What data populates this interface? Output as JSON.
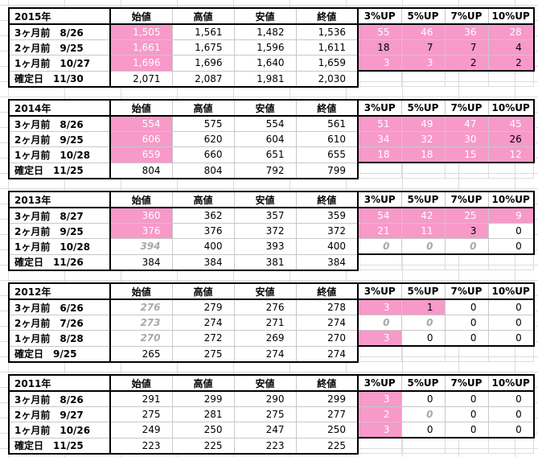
{
  "headers": [
    "始値",
    "高値",
    "安値",
    "終値",
    "3%UP",
    "5%UP",
    "7%UP",
    "10%UP"
  ],
  "blocks": [
    {
      "year": "2015年",
      "rows": [
        {
          "label": "3ヶ月前　8/26",
          "open": "1,505",
          "high": "1,561",
          "low": "1,482",
          "close": "1,536",
          "up3": "55",
          "up5": "46",
          "up7": "36",
          "up10": "28"
        },
        {
          "label": "2ヶ月前　9/25",
          "open": "1,661",
          "high": "1,675",
          "low": "1,596",
          "close": "1,611",
          "up3": "18",
          "up5": "7",
          "up7": "7",
          "up10": "4"
        },
        {
          "label": "1ヶ月前　10/27",
          "open": "1,696",
          "high": "1,696",
          "low": "1,640",
          "close": "1,659",
          "up3": "3",
          "up5": "3",
          "up7": "2",
          "up10": "2"
        },
        {
          "label": "確定日　11/30",
          "open": "2,071",
          "high": "2,087",
          "low": "1,981",
          "close": "2,030"
        }
      ]
    },
    {
      "year": "2014年",
      "rows": [
        {
          "label": "3ヶ月前　8/26",
          "open": "554",
          "high": "575",
          "low": "554",
          "close": "561",
          "up3": "51",
          "up5": "49",
          "up7": "47",
          "up10": "45"
        },
        {
          "label": "2ヶ月前　9/25",
          "open": "606",
          "high": "620",
          "low": "604",
          "close": "610",
          "up3": "34",
          "up5": "32",
          "up7": "30",
          "up10": "26"
        },
        {
          "label": "1ヶ月前　10/28",
          "open": "659",
          "high": "660",
          "low": "651",
          "close": "655",
          "up3": "18",
          "up5": "18",
          "up7": "15",
          "up10": "12"
        },
        {
          "label": "確定日　11/25",
          "open": "804",
          "high": "804",
          "low": "792",
          "close": "799"
        }
      ]
    },
    {
      "year": "2013年",
      "rows": [
        {
          "label": "3ヶ月前　8/27",
          "open": "360",
          "high": "362",
          "low": "357",
          "close": "359",
          "up3": "54",
          "up5": "42",
          "up7": "25",
          "up10": "9"
        },
        {
          "label": "2ヶ月前　9/25",
          "open": "376",
          "high": "376",
          "low": "372",
          "close": "372",
          "up3": "21",
          "up5": "11",
          "up7": "3",
          "up10": "0"
        },
        {
          "label": "1ヶ月前　10/28",
          "open": "394",
          "high": "400",
          "low": "393",
          "close": "400",
          "up3": "0",
          "up5": "0",
          "up7": "0",
          "up10": "0"
        },
        {
          "label": "確定日　11/26",
          "open": "384",
          "high": "384",
          "low": "381",
          "close": "384"
        }
      ]
    },
    {
      "year": "2012年",
      "rows": [
        {
          "label": "3ヶ月前　6/26",
          "open": "276",
          "high": "279",
          "low": "276",
          "close": "278",
          "up3": "3",
          "up5": "1",
          "up7": "0",
          "up10": "0"
        },
        {
          "label": "2ヶ月前　7/26",
          "open": "273",
          "high": "274",
          "low": "271",
          "close": "274",
          "up3": "0",
          "up5": "0",
          "up7": "0",
          "up10": "0"
        },
        {
          "label": "1ヶ月前　8/28",
          "open": "270",
          "high": "272",
          "low": "269",
          "close": "270",
          "up3": "3",
          "up5": "0",
          "up7": "0",
          "up10": "0"
        },
        {
          "label": "確定日　9/25",
          "open": "265",
          "high": "275",
          "low": "274",
          "close": "274"
        }
      ]
    },
    {
      "year": "2011年",
      "rows": [
        {
          "label": "3ヶ月前　8/26",
          "open": "291",
          "high": "299",
          "low": "290",
          "close": "299",
          "up3": "3",
          "up5": "0",
          "up7": "0",
          "up10": "0"
        },
        {
          "label": "2ヶ月前　9/27",
          "open": "275",
          "high": "281",
          "low": "275",
          "close": "277",
          "up3": "2",
          "up5": "0",
          "up7": "0",
          "up10": "0"
        },
        {
          "label": "1ヶ月前　10/26",
          "open": "249",
          "high": "250",
          "low": "247",
          "close": "250",
          "up3": "3",
          "up5": "0",
          "up7": "0",
          "up10": "0"
        },
        {
          "label": "確定日　11/25",
          "open": "223",
          "high": "225",
          "low": "223",
          "close": "225"
        }
      ]
    }
  ]
}
